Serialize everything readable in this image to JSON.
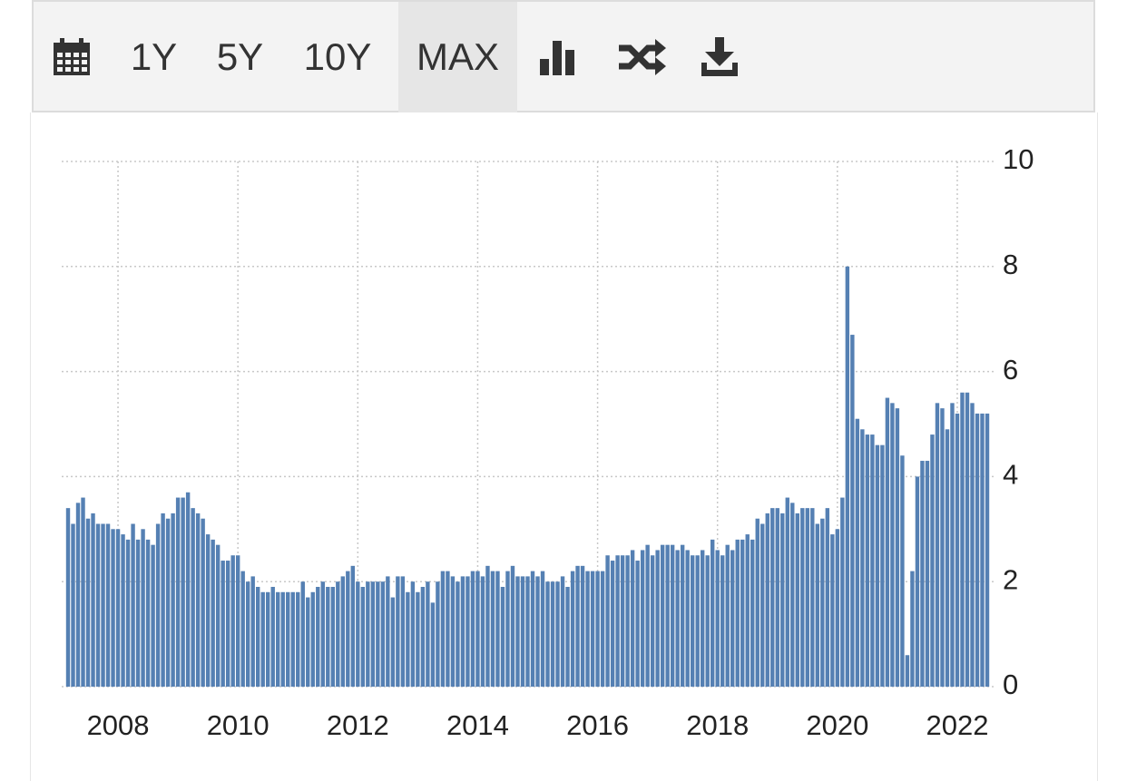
{
  "toolbar": {
    "buttons": [
      "1Y",
      "5Y",
      "10Y",
      "MAX"
    ]
  },
  "chart_data": {
    "type": "bar",
    "color": "#5580b3",
    "grid": true,
    "ylim": [
      0,
      10
    ],
    "yticks": [
      0,
      2,
      4,
      6,
      8,
      10
    ],
    "categories": [
      null,
      null,
      null,
      null,
      null,
      null,
      null,
      null,
      null,
      null,
      "2008",
      null,
      null,
      null,
      null,
      null,
      null,
      null,
      null,
      null,
      null,
      null,
      null,
      null,
      null,
      null,
      null,
      null,
      null,
      null,
      null,
      null,
      null,
      null,
      "2010",
      null,
      null,
      null,
      null,
      null,
      null,
      null,
      null,
      null,
      null,
      null,
      null,
      null,
      null,
      null,
      null,
      null,
      null,
      null,
      null,
      null,
      null,
      null,
      "2012",
      null,
      null,
      null,
      null,
      null,
      null,
      null,
      null,
      null,
      null,
      null,
      null,
      null,
      null,
      null,
      null,
      null,
      null,
      null,
      null,
      null,
      null,
      null,
      "2014",
      null,
      null,
      null,
      null,
      null,
      null,
      null,
      null,
      null,
      null,
      null,
      null,
      null,
      null,
      null,
      null,
      null,
      null,
      null,
      null,
      null,
      null,
      null,
      "2016",
      null,
      null,
      null,
      null,
      null,
      null,
      null,
      null,
      null,
      null,
      null,
      null,
      null,
      null,
      null,
      null,
      null,
      null,
      null,
      null,
      null,
      null,
      null,
      "2018",
      null,
      null,
      null,
      null,
      null,
      null,
      null,
      null,
      null,
      null,
      null,
      null,
      null,
      null,
      null,
      null,
      null,
      null,
      null,
      null,
      null,
      null,
      null,
      "2020",
      null,
      null,
      null,
      null,
      null,
      null,
      null,
      null,
      null,
      null,
      null,
      null,
      null,
      null,
      null,
      null,
      null,
      null,
      null,
      null,
      null,
      null,
      null,
      "2022",
      null,
      null,
      null,
      null,
      null,
      null
    ],
    "values": [
      3.4,
      3.1,
      3.5,
      3.6,
      3.2,
      3.3,
      3.1,
      3.1,
      3.1,
      3.0,
      3.0,
      2.9,
      2.8,
      3.1,
      2.8,
      3.0,
      2.8,
      2.7,
      3.1,
      3.3,
      3.2,
      3.3,
      3.6,
      3.6,
      3.7,
      3.4,
      3.3,
      3.2,
      2.9,
      2.8,
      2.7,
      2.4,
      2.4,
      2.5,
      2.5,
      2.2,
      2.0,
      2.1,
      1.9,
      1.8,
      1.8,
      1.9,
      1.8,
      1.8,
      1.8,
      1.8,
      1.8,
      2.0,
      1.7,
      1.8,
      1.9,
      2.0,
      1.9,
      1.9,
      2.0,
      2.1,
      2.2,
      2.3,
      2.0,
      1.9,
      2.0,
      2.0,
      2.0,
      2.0,
      2.1,
      1.7,
      2.1,
      2.1,
      1.8,
      2.0,
      1.8,
      1.9,
      2.0,
      1.6,
      2.0,
      2.2,
      2.2,
      2.1,
      2.0,
      2.1,
      2.1,
      2.2,
      2.2,
      2.1,
      2.3,
      2.2,
      2.2,
      1.9,
      2.2,
      2.3,
      2.1,
      2.1,
      2.1,
      2.2,
      2.1,
      2.2,
      2.0,
      2.0,
      2.0,
      2.1,
      1.9,
      2.2,
      2.3,
      2.3,
      2.2,
      2.2,
      2.2,
      2.2,
      2.5,
      2.4,
      2.5,
      2.5,
      2.5,
      2.6,
      2.4,
      2.6,
      2.7,
      2.5,
      2.6,
      2.7,
      2.7,
      2.7,
      2.6,
      2.7,
      2.6,
      2.5,
      2.5,
      2.6,
      2.5,
      2.8,
      2.6,
      2.5,
      2.7,
      2.6,
      2.8,
      2.8,
      2.9,
      2.8,
      3.2,
      3.1,
      3.3,
      3.4,
      3.4,
      3.3,
      3.6,
      3.5,
      3.3,
      3.4,
      3.4,
      3.4,
      3.1,
      3.2,
      3.4,
      2.9,
      3.0,
      3.6,
      8.0,
      6.7,
      5.1,
      4.9,
      4.8,
      4.8,
      4.6,
      4.6,
      5.5,
      5.4,
      5.3,
      4.4,
      0.6,
      2.2,
      4.0,
      4.3,
      4.3,
      4.8,
      5.4,
      5.3,
      4.9,
      5.4,
      5.2,
      5.6,
      5.6,
      5.4,
      5.2,
      5.2,
      5.2
    ]
  }
}
